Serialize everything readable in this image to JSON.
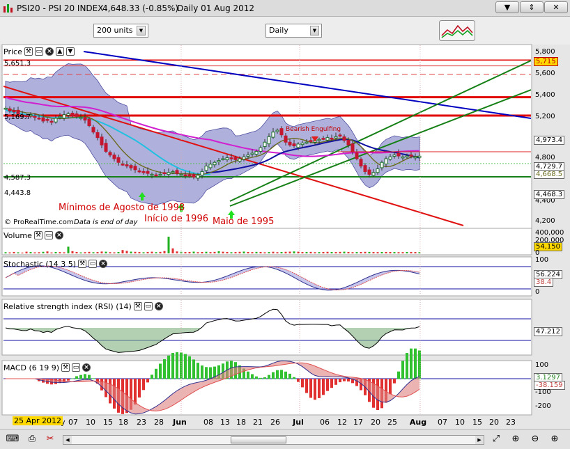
{
  "window": {
    "title": "PSI20 - PSI 20 INDEX",
    "last": "4,648.33 (-0.85%)",
    "period_info": "Daily  01 Aug 2012",
    "buttons": [
      "▼",
      "⇕",
      "✕"
    ]
  },
  "toolbar": {
    "units_value": "200 units",
    "timeframe_value": "Daily"
  },
  "price_panel": {
    "label": "Price",
    "right_axis": [
      "5,800",
      "5,600",
      "5,400",
      "5,200",
      "4,800",
      "4,400",
      "4,200"
    ],
    "badges": {
      "resistance": "5,715",
      "bollinger_upper": "4,973.4",
      "ma_a": "4,729.7",
      "close": "4,668.5",
      "bollinger_lower": "4,468.3"
    },
    "left_labels": [
      "5,651.3",
      "5,169.7",
      "4,587.3",
      "4,443.8"
    ],
    "annotations": {
      "bearish": "Bearish Engulfing",
      "agosto": "Mínimos de Agosto de 1998",
      "inicio": "Início de 1996",
      "maio": "Maio de 1995"
    },
    "credit_line": "© ProRealTime.com",
    "credit_note": "Data is end of day"
  },
  "volume_panel": {
    "label": "Volume",
    "right_axis": [
      "400,000",
      "200,000",
      "0"
    ],
    "value": "54,150",
    "bars": [
      22000,
      18000,
      26000,
      20000,
      15000,
      30000,
      24000,
      19000,
      21000,
      28000,
      35000,
      17000,
      25000,
      23000,
      20000,
      120000,
      40000,
      26000,
      18000,
      22000,
      27000,
      21000,
      24000,
      33000,
      30000,
      22000,
      19000,
      25000,
      60000,
      45000,
      31000,
      28000,
      24000,
      20000,
      26000,
      30000,
      22000,
      27000,
      42000,
      300000,
      90000,
      35000,
      28000,
      24000,
      26000,
      31000,
      22000,
      25000,
      29000,
      23000,
      27000,
      38000,
      30000,
      26000,
      21000,
      24000,
      28000,
      32000,
      25000,
      23000,
      27000,
      26000,
      20000,
      24000,
      29000,
      22000,
      25000,
      28000,
      31000,
      35000,
      30000,
      24000,
      26000,
      27000,
      22000,
      23000,
      26000,
      28000,
      25000,
      24000,
      27000,
      30000,
      26000,
      22000,
      24000,
      25000,
      28000,
      27000,
      24000,
      23000,
      25000,
      26000,
      25000,
      24000,
      22000,
      23000,
      25000,
      26000,
      24000,
      23000
    ]
  },
  "stochastic_panel": {
    "label": "Stochastic (14 3 5)",
    "right_axis": [
      "100",
      "0"
    ],
    "values": {
      "k": "56.224",
      "d": "38.4"
    }
  },
  "rsi_panel": {
    "label": "Relative strength index (RSI) (14)",
    "value": "47.212"
  },
  "macd_panel": {
    "label": "MACD (6 19 9)",
    "right_axis": [
      "100",
      "-100",
      "-200"
    ],
    "values": {
      "macd": "3.1297",
      "signal": "-38.159"
    }
  },
  "x_axis": {
    "highlight": "25 Apr 2012",
    "labels": [
      "ay",
      "07",
      "10",
      "15",
      "18",
      "23",
      "28",
      "Jun",
      "08",
      "13",
      "18",
      "21",
      "26",
      "Jul",
      "06",
      "12",
      "17",
      "20",
      "25",
      "Aug",
      "07",
      "10",
      "15",
      "20",
      "23"
    ]
  },
  "colors": {
    "candle_up": "#1c6f2b",
    "candle_down": "#c4162f",
    "bollinger_fill": "#8f8fce",
    "resistance": "#e00000",
    "trend_blue": "#0000c0",
    "trend_green": "#158015",
    "ma_magenta": "#d020d0",
    "ma_cyan": "#20c0e0",
    "ma_olive": "#6b6b1e"
  }
}
